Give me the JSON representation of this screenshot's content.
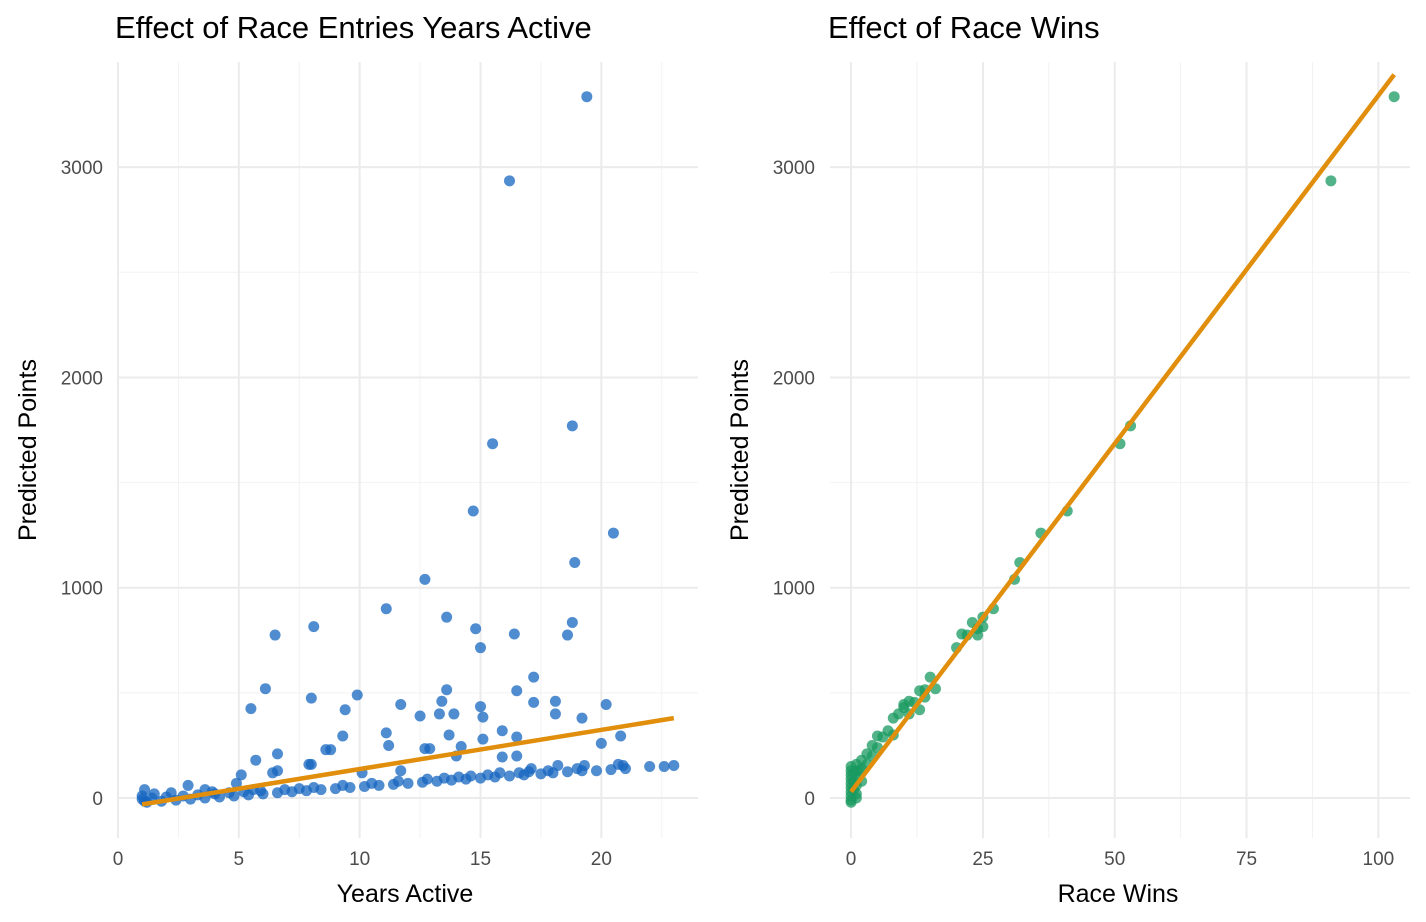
{
  "chart_data": [
    {
      "type": "scatter",
      "title": "Effect of Race Entries Years Active",
      "xlabel": "Years Active",
      "ylabel": "Predicted Points",
      "xlim": [
        0,
        24
      ],
      "ylim": [
        -190,
        3500
      ],
      "xticks": [
        0,
        5,
        10,
        15,
        20
      ],
      "yticks": [
        0,
        1000,
        2000,
        3000
      ],
      "grid": true,
      "point_color": "#1565c0",
      "fit_color": "#e08e0b",
      "fit_line": {
        "x": [
          1,
          23
        ],
        "y": [
          -30,
          380
        ]
      },
      "points": [
        {
          "x": 19.4,
          "y": 3335
        },
        {
          "x": 16.2,
          "y": 2935
        },
        {
          "x": 18.8,
          "y": 1770
        },
        {
          "x": 15.5,
          "y": 1685
        },
        {
          "x": 14.7,
          "y": 1365
        },
        {
          "x": 20.5,
          "y": 1260
        },
        {
          "x": 18.9,
          "y": 1120
        },
        {
          "x": 12.7,
          "y": 1040
        },
        {
          "x": 11.1,
          "y": 900
        },
        {
          "x": 13.6,
          "y": 860
        },
        {
          "x": 18.8,
          "y": 835
        },
        {
          "x": 8.1,
          "y": 815
        },
        {
          "x": 14.8,
          "y": 805
        },
        {
          "x": 16.4,
          "y": 780
        },
        {
          "x": 6.5,
          "y": 775
        },
        {
          "x": 18.6,
          "y": 775
        },
        {
          "x": 15.0,
          "y": 715
        },
        {
          "x": 17.2,
          "y": 575
        },
        {
          "x": 6.1,
          "y": 520
        },
        {
          "x": 13.6,
          "y": 515
        },
        {
          "x": 16.5,
          "y": 510
        },
        {
          "x": 9.9,
          "y": 490
        },
        {
          "x": 8.0,
          "y": 475
        },
        {
          "x": 13.4,
          "y": 460
        },
        {
          "x": 18.1,
          "y": 460
        },
        {
          "x": 17.2,
          "y": 455
        },
        {
          "x": 11.7,
          "y": 445
        },
        {
          "x": 20.2,
          "y": 445
        },
        {
          "x": 15.0,
          "y": 435
        },
        {
          "x": 5.5,
          "y": 425
        },
        {
          "x": 9.4,
          "y": 420
        },
        {
          "x": 13.3,
          "y": 400
        },
        {
          "x": 13.9,
          "y": 400
        },
        {
          "x": 18.1,
          "y": 400
        },
        {
          "x": 12.5,
          "y": 390
        },
        {
          "x": 15.1,
          "y": 385
        },
        {
          "x": 19.2,
          "y": 380
        },
        {
          "x": 15.9,
          "y": 320
        },
        {
          "x": 11.1,
          "y": 310
        },
        {
          "x": 13.7,
          "y": 300
        },
        {
          "x": 9.3,
          "y": 295
        },
        {
          "x": 20.8,
          "y": 295
        },
        {
          "x": 16.5,
          "y": 290
        },
        {
          "x": 15.1,
          "y": 280
        },
        {
          "x": 20.0,
          "y": 260
        },
        {
          "x": 14.2,
          "y": 245
        },
        {
          "x": 11.2,
          "y": 250
        },
        {
          "x": 8.8,
          "y": 230
        },
        {
          "x": 8.6,
          "y": 230
        },
        {
          "x": 12.7,
          "y": 235
        },
        {
          "x": 12.9,
          "y": 235
        },
        {
          "x": 6.6,
          "y": 210
        },
        {
          "x": 16.5,
          "y": 200
        },
        {
          "x": 14.0,
          "y": 200
        },
        {
          "x": 15.9,
          "y": 195
        },
        {
          "x": 5.7,
          "y": 180
        },
        {
          "x": 8.0,
          "y": 160
        },
        {
          "x": 7.9,
          "y": 160
        },
        {
          "x": 20.7,
          "y": 160
        },
        {
          "x": 20.9,
          "y": 155
        },
        {
          "x": 19.3,
          "y": 155
        },
        {
          "x": 18.2,
          "y": 155
        },
        {
          "x": 17.1,
          "y": 140
        },
        {
          "x": 6.6,
          "y": 130
        },
        {
          "x": 11.7,
          "y": 130
        },
        {
          "x": 6.4,
          "y": 120
        },
        {
          "x": 10.1,
          "y": 120
        },
        {
          "x": 5.1,
          "y": 110
        },
        {
          "x": 2.9,
          "y": 60
        },
        {
          "x": 4.9,
          "y": 70
        },
        {
          "x": 1.1,
          "y": 40
        },
        {
          "x": 3.6,
          "y": 40
        },
        {
          "x": 22.0,
          "y": 150
        },
        {
          "x": 22.6,
          "y": 150
        },
        {
          "x": 23.0,
          "y": 155
        },
        {
          "x": 21.0,
          "y": 140
        },
        {
          "x": 20.4,
          "y": 135
        },
        {
          "x": 19.8,
          "y": 130
        },
        {
          "x": 19.2,
          "y": 130
        },
        {
          "x": 18.6,
          "y": 125
        },
        {
          "x": 18.0,
          "y": 120
        },
        {
          "x": 17.5,
          "y": 115
        },
        {
          "x": 16.8,
          "y": 110
        },
        {
          "x": 16.2,
          "y": 105
        },
        {
          "x": 15.6,
          "y": 100
        },
        {
          "x": 15.0,
          "y": 95
        },
        {
          "x": 14.4,
          "y": 90
        },
        {
          "x": 13.8,
          "y": 85
        },
        {
          "x": 13.2,
          "y": 80
        },
        {
          "x": 12.6,
          "y": 75
        },
        {
          "x": 12.0,
          "y": 70
        },
        {
          "x": 11.4,
          "y": 65
        },
        {
          "x": 10.8,
          "y": 60
        },
        {
          "x": 10.2,
          "y": 55
        },
        {
          "x": 9.6,
          "y": 50
        },
        {
          "x": 9.0,
          "y": 45
        },
        {
          "x": 8.4,
          "y": 40
        },
        {
          "x": 7.8,
          "y": 35
        },
        {
          "x": 7.2,
          "y": 30
        },
        {
          "x": 6.6,
          "y": 25
        },
        {
          "x": 6.0,
          "y": 20
        },
        {
          "x": 5.4,
          "y": 15
        },
        {
          "x": 4.8,
          "y": 10
        },
        {
          "x": 4.2,
          "y": 5
        },
        {
          "x": 3.6,
          "y": 0
        },
        {
          "x": 3.0,
          "y": -5
        },
        {
          "x": 2.4,
          "y": -10
        },
        {
          "x": 1.8,
          "y": -15
        },
        {
          "x": 1.2,
          "y": -20
        },
        {
          "x": 1.0,
          "y": -5
        },
        {
          "x": 1.0,
          "y": 10
        },
        {
          "x": 1.4,
          "y": 0
        },
        {
          "x": 2.0,
          "y": 5
        },
        {
          "x": 2.7,
          "y": 10
        },
        {
          "x": 3.3,
          "y": 15
        },
        {
          "x": 4.0,
          "y": 20
        },
        {
          "x": 4.6,
          "y": 25
        },
        {
          "x": 5.2,
          "y": 30
        },
        {
          "x": 5.9,
          "y": 35
        },
        {
          "x": 6.9,
          "y": 40
        },
        {
          "x": 8.1,
          "y": 50
        },
        {
          "x": 9.3,
          "y": 60
        },
        {
          "x": 10.5,
          "y": 70
        },
        {
          "x": 11.6,
          "y": 80
        },
        {
          "x": 12.8,
          "y": 90
        },
        {
          "x": 14.1,
          "y": 100
        },
        {
          "x": 15.3,
          "y": 110
        },
        {
          "x": 16.6,
          "y": 120
        },
        {
          "x": 17.8,
          "y": 130
        },
        {
          "x": 19.0,
          "y": 140
        },
        {
          "x": 1.5,
          "y": 20
        },
        {
          "x": 2.2,
          "y": 25
        },
        {
          "x": 3.9,
          "y": 30
        },
        {
          "x": 5.6,
          "y": 40
        },
        {
          "x": 7.5,
          "y": 45
        },
        {
          "x": 13.5,
          "y": 95
        },
        {
          "x": 14.6,
          "y": 105
        },
        {
          "x": 15.8,
          "y": 120
        },
        {
          "x": 17.0,
          "y": 125
        },
        {
          "x": 1.1,
          "y": -15
        }
      ]
    },
    {
      "type": "scatter",
      "title": "Effect of Race Wins",
      "xlabel": "Race Wins",
      "ylabel": "Predicted Points",
      "xlim": [
        -4,
        106
      ],
      "ylim": [
        -190,
        3500
      ],
      "xticks": [
        0,
        25,
        50,
        75,
        100
      ],
      "yticks": [
        0,
        1000,
        2000,
        3000
      ],
      "grid": true,
      "point_color": "#1a9960",
      "fit_color": "#e08e0b",
      "fit_line": {
        "x": [
          0,
          103
        ],
        "y": [
          30,
          3440
        ]
      },
      "points": [
        {
          "x": 103,
          "y": 3335
        },
        {
          "x": 91,
          "y": 2935
        },
        {
          "x": 53,
          "y": 1770
        },
        {
          "x": 51,
          "y": 1685
        },
        {
          "x": 41,
          "y": 1365
        },
        {
          "x": 36,
          "y": 1260
        },
        {
          "x": 32,
          "y": 1120
        },
        {
          "x": 31,
          "y": 1040
        },
        {
          "x": 27,
          "y": 900
        },
        {
          "x": 25,
          "y": 860
        },
        {
          "x": 23,
          "y": 835
        },
        {
          "x": 25,
          "y": 815
        },
        {
          "x": 24,
          "y": 805
        },
        {
          "x": 21,
          "y": 780
        },
        {
          "x": 22,
          "y": 775
        },
        {
          "x": 24,
          "y": 775
        },
        {
          "x": 20,
          "y": 715
        },
        {
          "x": 15,
          "y": 575
        },
        {
          "x": 16,
          "y": 520
        },
        {
          "x": 14,
          "y": 515
        },
        {
          "x": 13,
          "y": 510
        },
        {
          "x": 14,
          "y": 480
        },
        {
          "x": 11,
          "y": 460
        },
        {
          "x": 12,
          "y": 455
        },
        {
          "x": 10,
          "y": 445
        },
        {
          "x": 10,
          "y": 430
        },
        {
          "x": 13,
          "y": 420
        },
        {
          "x": 9,
          "y": 400
        },
        {
          "x": 11,
          "y": 400
        },
        {
          "x": 8,
          "y": 380
        },
        {
          "x": 7,
          "y": 320
        },
        {
          "x": 8,
          "y": 300
        },
        {
          "x": 5,
          "y": 295
        },
        {
          "x": 6,
          "y": 290
        },
        {
          "x": 4,
          "y": 250
        },
        {
          "x": 5,
          "y": 240
        },
        {
          "x": 3,
          "y": 210
        },
        {
          "x": 4,
          "y": 200
        },
        {
          "x": 2,
          "y": 180
        },
        {
          "x": 3,
          "y": 160
        },
        {
          "x": 2,
          "y": 140
        },
        {
          "x": 1,
          "y": 160
        },
        {
          "x": 1,
          "y": 130
        },
        {
          "x": 0,
          "y": 150
        },
        {
          "x": 0,
          "y": 130
        },
        {
          "x": 0,
          "y": 110
        },
        {
          "x": 0,
          "y": 90
        },
        {
          "x": 0,
          "y": 70
        },
        {
          "x": 0,
          "y": 50
        },
        {
          "x": 0,
          "y": 30
        },
        {
          "x": 0,
          "y": 10
        },
        {
          "x": 0,
          "y": -10
        },
        {
          "x": 1,
          "y": 100
        },
        {
          "x": 1,
          "y": 60
        },
        {
          "x": 1,
          "y": 20
        },
        {
          "x": 2,
          "y": 80
        },
        {
          "x": 0.5,
          "y": 120
        },
        {
          "x": 0.5,
          "y": 80
        },
        {
          "x": 0.5,
          "y": 40
        },
        {
          "x": 1.5,
          "y": 130
        },
        {
          "x": 1,
          "y": 0
        },
        {
          "x": 0,
          "y": -20
        }
      ]
    }
  ]
}
